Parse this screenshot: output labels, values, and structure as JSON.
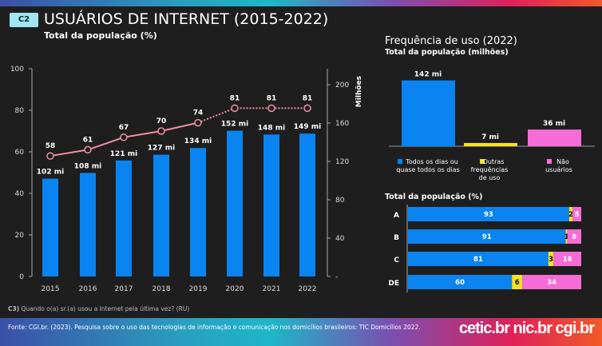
{
  "header": {
    "badge": "C2",
    "title": "USUÁRIOS DE INTERNET (2015-2022)",
    "subtitle": "Total da população (%)"
  },
  "footer": {
    "question_code": "C3)",
    "question": " Quando o(a) sr.(a) usou a Internet pela última vez? (RU)",
    "source": "Fonte: CGI.br. (2023). Pesquisa sobre o uso das tecnologias de informação e comunicação nos domicílios brasileiros: TIC Domicílios 2022.",
    "logos": "cetic.br  nic.br  cgi.br"
  },
  "colors": {
    "blue": "#0a84f0",
    "yellow": "#f5e12a",
    "pink": "#f56cd6",
    "line": "#f28fa6"
  },
  "chart_data": [
    {
      "type": "bar+line",
      "title": "USUÁRIOS DE INTERNET (2015-2022)",
      "categories": [
        "2015",
        "2016",
        "2017",
        "2018",
        "2019",
        "2020",
        "2021",
        "2022"
      ],
      "bars": {
        "name": "Milhões",
        "values": [
          102,
          108,
          121,
          127,
          134,
          152,
          148,
          149
        ],
        "labels": [
          "102 mi",
          "108 mi",
          "121 mi",
          "127 mi",
          "134 mi",
          "152 mi",
          "148 mi",
          "149 mi"
        ],
        "axis": "right",
        "ylim": [
          0,
          200
        ],
        "ticks": [
          "-",
          "40",
          "80",
          "120",
          "160",
          "200"
        ],
        "ylabel": "Milhões"
      },
      "line": {
        "name": "%",
        "values": [
          58,
          61,
          67,
          70,
          74,
          81,
          81,
          81
        ],
        "dotted_from": "2020",
        "axis": "left",
        "ylim": [
          0,
          100
        ],
        "ticks": [
          "0",
          "20",
          "40",
          "60",
          "80",
          "100"
        ]
      }
    },
    {
      "type": "bar",
      "title": "Frequência de uso (2022)",
      "subtitle": "Total da população (milhões)",
      "categories": [
        "Todos os dias ou quase todos os dias",
        "Outras frequências de uso",
        "Não usuários"
      ],
      "values": [
        142,
        7,
        36
      ],
      "labels": [
        "142 mi",
        "7 mi",
        "36 mi"
      ]
    },
    {
      "type": "stacked-bar",
      "subtitle": "Total da população (%)",
      "categories": [
        "A",
        "B",
        "C",
        "DE"
      ],
      "series": [
        {
          "name": "Todos os dias ou quase todos os dias",
          "values": [
            93,
            91,
            81,
            60
          ]
        },
        {
          "name": "Outras frequências de uso",
          "values": [
            2,
            1,
            3,
            6
          ]
        },
        {
          "name": "Não usuários",
          "values": [
            5,
            8,
            16,
            34
          ]
        }
      ]
    }
  ]
}
